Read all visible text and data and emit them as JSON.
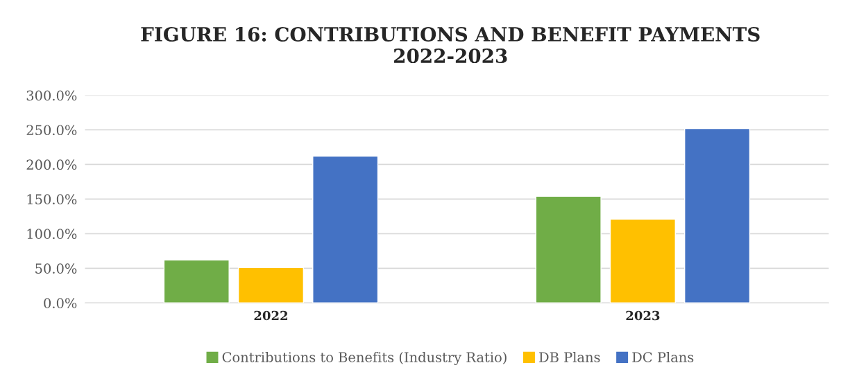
{
  "chart_data": {
    "type": "bar",
    "title": "FIGURE 16: CONTRIBUTIONS AND BENEFIT PAYMENTS\n2022-2023",
    "categories": [
      "2022",
      "2023"
    ],
    "series": [
      {
        "name": "Contributions to Benefits (Industry Ratio)",
        "color": "#70ad47",
        "values": [
          62,
          154
        ]
      },
      {
        "name": "DB Plans",
        "color": "#ffc000",
        "values": [
          51,
          121
        ]
      },
      {
        "name": "DC Plans",
        "color": "#4472c4",
        "values": [
          212,
          252
        ]
      }
    ],
    "ylim": [
      0,
      300
    ],
    "yticks": [
      {
        "value": 0,
        "label": "0.0%"
      },
      {
        "value": 50,
        "label": "50.0%"
      },
      {
        "value": 100,
        "label": "100.0%"
      },
      {
        "value": 150,
        "label": "150.0%"
      },
      {
        "value": 200,
        "label": "200.0%"
      },
      {
        "value": 250,
        "label": "250.0%"
      },
      {
        "value": 300,
        "label": "300.0%"
      }
    ],
    "grid": "y",
    "legend": "bottom"
  }
}
